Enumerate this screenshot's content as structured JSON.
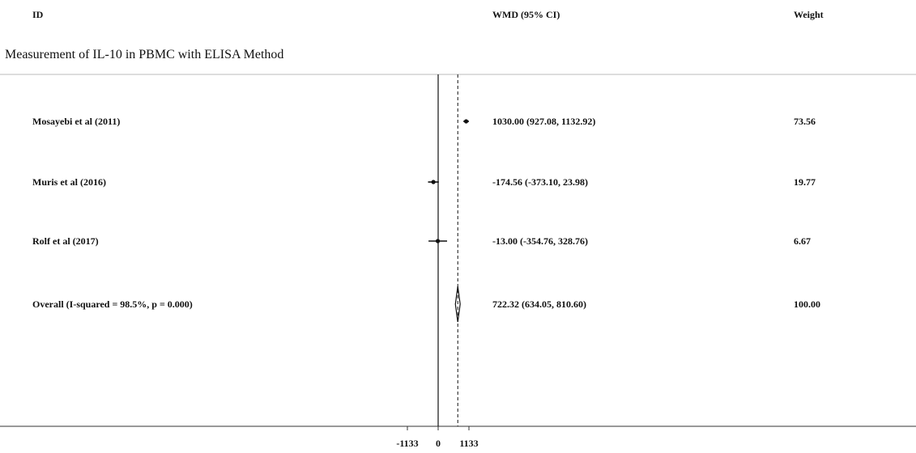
{
  "header": {
    "id_label": "ID",
    "effect_label": "WMD (95% CI)",
    "weight_label": "Weight"
  },
  "subgroup_title": "Measurement of IL-10 in PBMC with ELISA Method",
  "chart_data": {
    "type": "forest",
    "x_ticks": [
      -1133,
      0,
      1133
    ],
    "xlim": [
      -1133,
      1133
    ],
    "null_line": 0,
    "studies": [
      {
        "id": "Mosayebi et al (2011)",
        "estimate": 1030.0,
        "ci_low": 927.08,
        "ci_high": 1132.92,
        "effect_text": "1030.00 (927.08, 1132.92)",
        "weight": "73.56"
      },
      {
        "id": "Muris et al (2016)",
        "estimate": -174.56,
        "ci_low": -373.1,
        "ci_high": 23.98,
        "effect_text": "-174.56 (-373.10, 23.98)",
        "weight": "19.77"
      },
      {
        "id": "Rolf et al (2017)",
        "estimate": -13.0,
        "ci_low": -354.76,
        "ci_high": 328.76,
        "effect_text": "-13.00 (-354.76, 328.76)",
        "weight": "6.67"
      }
    ],
    "overall": {
      "id": "Overall  (I-squared = 98.5%, p = 0.000)",
      "estimate": 722.32,
      "ci_low": 634.05,
      "ci_high": 810.6,
      "effect_text": "722.32 (634.05, 810.60)",
      "weight": "100.00"
    }
  }
}
